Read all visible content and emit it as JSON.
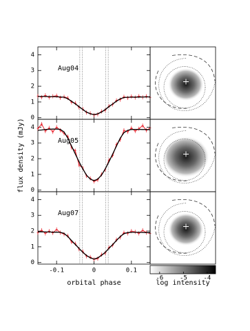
{
  "chart_data": [
    {
      "type": "line",
      "annotation": "Aug04",
      "x": [
        -0.15,
        -0.14,
        -0.13,
        -0.12,
        -0.11,
        -0.1,
        -0.09,
        -0.08,
        -0.07,
        -0.06,
        -0.05,
        -0.04,
        -0.03,
        -0.02,
        -0.01,
        0,
        0.01,
        0.02,
        0.03,
        0.04,
        0.05,
        0.06,
        0.07,
        0.08,
        0.09,
        0.1,
        0.11,
        0.12,
        0.13,
        0.14,
        0.15
      ],
      "series": [
        {
          "color": "#e8202a",
          "values": [
            1.38,
            1.3,
            1.42,
            1.29,
            1.36,
            1.4,
            1.27,
            1.33,
            1.25,
            0.98,
            0.93,
            0.66,
            0.55,
            0.33,
            0.28,
            0.17,
            0.22,
            0.4,
            0.48,
            0.74,
            0.84,
            1.1,
            1.15,
            1.33,
            1.26,
            1.35,
            1.28,
            1.37,
            1.3,
            1.36,
            1.29
          ]
        },
        {
          "color": "#000000",
          "values": [
            1.35,
            1.35,
            1.35,
            1.34,
            1.34,
            1.33,
            1.32,
            1.3,
            1.2,
            1.05,
            0.88,
            0.7,
            0.52,
            0.36,
            0.25,
            0.2,
            0.25,
            0.36,
            0.52,
            0.7,
            0.88,
            1.05,
            1.2,
            1.28,
            1.3,
            1.3,
            1.31,
            1.31,
            1.32,
            1.32,
            1.33
          ]
        }
      ],
      "contact_phases": [
        -0.038,
        -0.031,
        0.031,
        0.038
      ],
      "xlim": [
        -0.15,
        0.15
      ],
      "xticks": [
        -0.1,
        0,
        0.1
      ],
      "ylim": [
        -0.1,
        4.5
      ],
      "yticks": [
        0,
        1,
        2,
        3,
        4
      ]
    },
    {
      "type": "line",
      "annotation": "Aug05",
      "ylabel": "flux density (mJy)",
      "x": [
        -0.15,
        -0.14,
        -0.13,
        -0.12,
        -0.11,
        -0.1,
        -0.09,
        -0.08,
        -0.07,
        -0.06,
        -0.05,
        -0.04,
        -0.03,
        -0.02,
        -0.01,
        0,
        0.01,
        0.02,
        0.03,
        0.04,
        0.05,
        0.06,
        0.07,
        0.08,
        0.09,
        0.1,
        0.11,
        0.12,
        0.13,
        0.14,
        0.15
      ],
      "series": [
        {
          "color": "#e8202a",
          "values": [
            3.9,
            4.2,
            3.75,
            3.95,
            3.7,
            4.0,
            3.8,
            3.6,
            3.4,
            2.7,
            2.5,
            1.6,
            1.4,
            0.9,
            0.75,
            0.55,
            0.65,
            1.0,
            1.3,
            1.9,
            2.2,
            2.9,
            3.2,
            3.8,
            3.7,
            3.95,
            3.75,
            3.9,
            4.1,
            3.8,
            3.95
          ]
        },
        {
          "color": "#000000",
          "values": [
            3.8,
            3.82,
            3.85,
            3.87,
            3.88,
            3.88,
            3.86,
            3.7,
            3.3,
            2.8,
            2.3,
            1.8,
            1.35,
            0.95,
            0.7,
            0.6,
            0.7,
            0.95,
            1.35,
            1.8,
            2.3,
            2.8,
            3.3,
            3.65,
            3.8,
            3.85,
            3.86,
            3.86,
            3.85,
            3.85,
            3.84
          ]
        }
      ],
      "contact_phases": [
        -0.038,
        -0.031,
        0.031,
        0.038
      ],
      "xlim": [
        -0.15,
        0.15
      ],
      "xticks": [
        -0.1,
        0,
        0.1
      ],
      "ylim": [
        -0.1,
        4.5
      ],
      "yticks": [
        0,
        1,
        2,
        3,
        4
      ]
    },
    {
      "type": "line",
      "annotation": "Aug07",
      "xlabel": "orbital phase",
      "x": [
        -0.15,
        -0.14,
        -0.13,
        -0.12,
        -0.11,
        -0.1,
        -0.09,
        -0.08,
        -0.07,
        -0.06,
        -0.05,
        -0.04,
        -0.03,
        -0.02,
        -0.01,
        0,
        0.01,
        0.02,
        0.03,
        0.04,
        0.05,
        0.06,
        0.07,
        0.08,
        0.09,
        0.1,
        0.11,
        0.12,
        0.13,
        0.14,
        0.15
      ],
      "series": [
        {
          "color": "#e8202a",
          "values": [
            1.9,
            2.05,
            1.85,
            2.0,
            1.88,
            2.1,
            1.9,
            1.8,
            1.7,
            1.3,
            1.2,
            0.85,
            0.7,
            0.4,
            0.35,
            0.2,
            0.25,
            0.5,
            0.6,
            0.95,
            1.1,
            1.45,
            1.6,
            1.9,
            1.85,
            2.0,
            1.95,
            1.85,
            2.05,
            1.9,
            1.85
          ]
        },
        {
          "color": "#000000",
          "values": [
            1.95,
            1.95,
            1.94,
            1.94,
            1.93,
            1.93,
            1.92,
            1.85,
            1.65,
            1.4,
            1.15,
            0.9,
            0.65,
            0.45,
            0.3,
            0.22,
            0.3,
            0.45,
            0.65,
            0.9,
            1.15,
            1.4,
            1.65,
            1.83,
            1.9,
            1.92,
            1.92,
            1.92,
            1.91,
            1.9,
            1.9
          ]
        }
      ],
      "contact_phases": [
        -0.038,
        -0.031,
        0.031,
        0.038
      ],
      "xlim": [
        -0.15,
        0.15
      ],
      "xticks": [
        -0.1,
        0,
        0.1
      ],
      "ylim": [
        -0.1,
        4.5
      ],
      "yticks": [
        0,
        1,
        2,
        3,
        4
      ]
    },
    {
      "type": "colorbar",
      "xlabel": "log intensity",
      "colors": [
        "#ffffff",
        "#000000"
      ],
      "xlim": [
        -6.4,
        -3.65
      ],
      "xticks": [
        -6,
        -5,
        -4
      ]
    }
  ]
}
